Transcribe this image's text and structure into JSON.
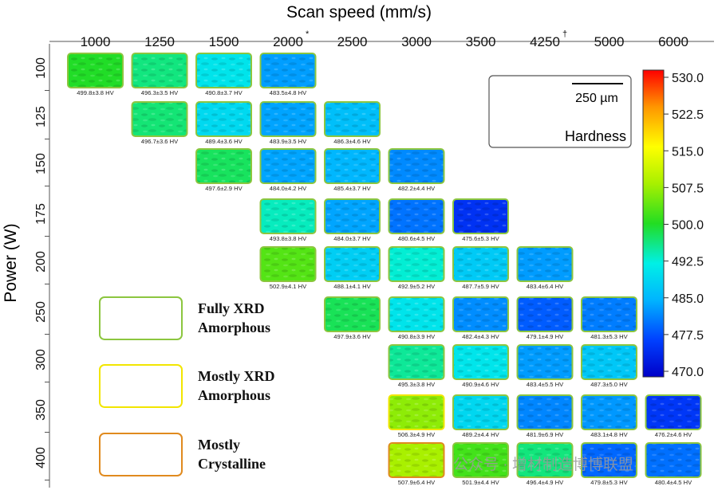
{
  "chart_data": {
    "type": "heatmap",
    "title": "Scan speed (mm/s)",
    "xlabel": "Scan speed (mm/s)",
    "ylabel": "Power (W)",
    "x_ticks": [
      "1000",
      "1250",
      "1500",
      "2000",
      "2500",
      "3000",
      "3500",
      "4250",
      "5000",
      "6000"
    ],
    "x_tick_marks": {
      "2000": "*",
      "4250": "†"
    },
    "y_ticks": [
      "100",
      "125",
      "150",
      "175",
      "200",
      "250",
      "300",
      "350",
      "400"
    ],
    "colorbar": {
      "label": "Hardness",
      "ticks": [
        "530.0",
        "522.5",
        "515.0",
        "507.5",
        "500.0",
        "492.5",
        "485.0",
        "477.5",
        "470.0"
      ],
      "min": 470.0,
      "max": 530.0
    },
    "scale_bar_label": "250 µm",
    "legend": [
      {
        "label": "Fully XRD\nAmorphous",
        "color": "#8cc63f"
      },
      {
        "label": "Mostly XRD\nAmorphous",
        "color": "#f2e600"
      },
      {
        "label": "Mostly\nCrystalline",
        "color": "#e08a1e"
      }
    ],
    "cells": [
      {
        "power": "100",
        "speed": "1000",
        "label": "499.8±3.8 HV",
        "hardness": 499.8,
        "class": "Fully XRD Amorphous"
      },
      {
        "power": "100",
        "speed": "1250",
        "label": "496.3±3.5 HV",
        "hardness": 496.3,
        "class": "Fully XRD Amorphous"
      },
      {
        "power": "100",
        "speed": "1500",
        "label": "490.8±3.7 HV",
        "hardness": 490.8,
        "class": "Fully XRD Amorphous"
      },
      {
        "power": "100",
        "speed": "2000",
        "label": "483.5±4.8 HV",
        "hardness": 483.5,
        "class": "Fully XRD Amorphous"
      },
      {
        "power": "125",
        "speed": "1250",
        "label": "496.7±3.6 HV",
        "hardness": 496.7,
        "class": "Fully XRD Amorphous"
      },
      {
        "power": "125",
        "speed": "1500",
        "label": "489.4±3.6 HV",
        "hardness": 489.4,
        "class": "Fully XRD Amorphous"
      },
      {
        "power": "125",
        "speed": "2000",
        "label": "483.9±3.5 HV",
        "hardness": 483.9,
        "class": "Fully XRD Amorphous"
      },
      {
        "power": "125",
        "speed": "2500",
        "label": "486.3±4.6 HV",
        "hardness": 486.3,
        "class": "Fully XRD Amorphous"
      },
      {
        "power": "150",
        "speed": "1500",
        "label": "497.6±2.9 HV",
        "hardness": 497.6,
        "class": "Fully XRD Amorphous"
      },
      {
        "power": "150",
        "speed": "2000",
        "label": "484.0±4.2 HV",
        "hardness": 484.0,
        "class": "Fully XRD Amorphous"
      },
      {
        "power": "150",
        "speed": "2500",
        "label": "485.4±3.7 HV",
        "hardness": 485.4,
        "class": "Fully XRD Amorphous"
      },
      {
        "power": "150",
        "speed": "3000",
        "label": "482.2±4.4 HV",
        "hardness": 482.2,
        "class": "Fully XRD Amorphous"
      },
      {
        "power": "175",
        "speed": "2000",
        "label": "493.8±3.8 HV",
        "hardness": 493.8,
        "class": "Fully XRD Amorphous"
      },
      {
        "power": "175",
        "speed": "2500",
        "label": "484.0±3.7 HV",
        "hardness": 484.0,
        "class": "Fully XRD Amorphous"
      },
      {
        "power": "175",
        "speed": "3000",
        "label": "480.6±4.5 HV",
        "hardness": 480.6,
        "class": "Fully XRD Amorphous"
      },
      {
        "power": "175",
        "speed": "3500",
        "label": "475.6±5.3 HV",
        "hardness": 475.6,
        "class": "Fully XRD Amorphous"
      },
      {
        "power": "200",
        "speed": "2000",
        "label": "502.9±4.1 HV",
        "hardness": 502.9,
        "class": "Fully XRD Amorphous"
      },
      {
        "power": "200",
        "speed": "2500",
        "label": "488.1±4.1 HV",
        "hardness": 488.1,
        "class": "Fully XRD Amorphous"
      },
      {
        "power": "200",
        "speed": "3000",
        "label": "492.9±5.2 HV",
        "hardness": 492.9,
        "class": "Fully XRD Amorphous"
      },
      {
        "power": "200",
        "speed": "3500",
        "label": "487.7±5.9 HV",
        "hardness": 487.7,
        "class": "Fully XRD Amorphous"
      },
      {
        "power": "200",
        "speed": "4250",
        "label": "483.4±6.4 HV",
        "hardness": 483.4,
        "class": "Fully XRD Amorphous"
      },
      {
        "power": "250",
        "speed": "2500",
        "label": "497.9±3.6 HV",
        "hardness": 497.9,
        "class": "Fully XRD Amorphous"
      },
      {
        "power": "250",
        "speed": "3000",
        "label": "490.8±3.9 HV",
        "hardness": 490.8,
        "class": "Fully XRD Amorphous"
      },
      {
        "power": "250",
        "speed": "3500",
        "label": "482.4±4.3 HV",
        "hardness": 482.4,
        "class": "Fully XRD Amorphous"
      },
      {
        "power": "250",
        "speed": "4250",
        "label": "479.1±4.9 HV",
        "hardness": 479.1,
        "class": "Fully XRD Amorphous"
      },
      {
        "power": "250",
        "speed": "5000",
        "label": "481.3±5.3 HV",
        "hardness": 481.3,
        "class": "Fully XRD Amorphous"
      },
      {
        "power": "300",
        "speed": "3000",
        "label": "495.3±3.8 HV",
        "hardness": 495.3,
        "class": "Fully XRD Amorphous"
      },
      {
        "power": "300",
        "speed": "3500",
        "label": "490.9±4.6 HV",
        "hardness": 490.9,
        "class": "Fully XRD Amorphous"
      },
      {
        "power": "300",
        "speed": "4250",
        "label": "483.4±5.5 HV",
        "hardness": 483.4,
        "class": "Fully XRD Amorphous"
      },
      {
        "power": "300",
        "speed": "5000",
        "label": "487.3±5.0 HV",
        "hardness": 487.3,
        "class": "Fully XRD Amorphous"
      },
      {
        "power": "350",
        "speed": "3000",
        "label": "506.3±4.9 HV",
        "hardness": 506.3,
        "class": "Mostly XRD Amorphous"
      },
      {
        "power": "350",
        "speed": "3500",
        "label": "489.2±4.4 HV",
        "hardness": 489.2,
        "class": "Fully XRD Amorphous"
      },
      {
        "power": "350",
        "speed": "4250",
        "label": "481.9±6.9 HV",
        "hardness": 481.9,
        "class": "Fully XRD Amorphous"
      },
      {
        "power": "350",
        "speed": "5000",
        "label": "483.1±4.8 HV",
        "hardness": 483.1,
        "class": "Fully XRD Amorphous"
      },
      {
        "power": "350",
        "speed": "6000",
        "label": "476.2±4.6 HV",
        "hardness": 476.2,
        "class": "Fully XRD Amorphous"
      },
      {
        "power": "400",
        "speed": "3000",
        "label": "507.9±6.4 HV",
        "hardness": 507.9,
        "class": "Mostly Crystalline"
      },
      {
        "power": "400",
        "speed": "3500",
        "label": "501.9±4.4 HV",
        "hardness": 501.9,
        "class": "Fully XRD Amorphous"
      },
      {
        "power": "400",
        "speed": "4250",
        "label": "496.4±4.9 HV",
        "hardness": 496.4,
        "class": "Fully XRD Amorphous"
      },
      {
        "power": "400",
        "speed": "5000",
        "label": "479.8±5.3 HV",
        "hardness": 479.8,
        "class": "Fully XRD Amorphous"
      },
      {
        "power": "400",
        "speed": "6000",
        "label": "480.4±4.5 HV",
        "hardness": 480.4,
        "class": "Fully XRD Amorphous"
      }
    ]
  },
  "watermark": "公众号 · 增材制造博博联盟"
}
